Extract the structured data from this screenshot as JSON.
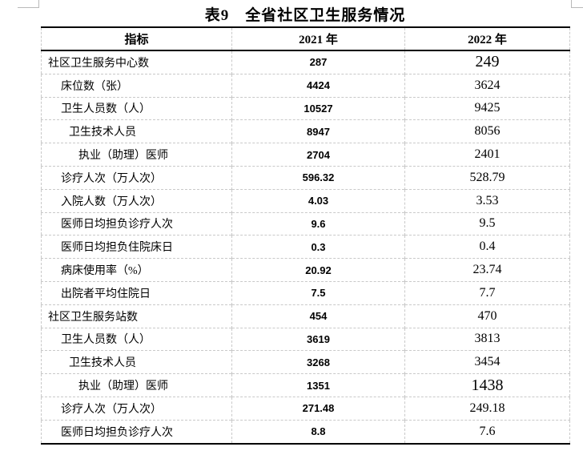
{
  "title": "表9　全省社区卫生服务情况",
  "colors": {
    "background": "#ffffff",
    "text": "#000000",
    "heavy_border": "#000000",
    "grid_dashed": "#c9c9c9",
    "corner_artifact": "#b9b9b9"
  },
  "table": {
    "headers": [
      "指标",
      "2021 年",
      "2022 年"
    ],
    "rows": [
      {
        "label": "社区卫生服务中心数",
        "indent": 0,
        "y2021": "287",
        "y2022": "249",
        "large_value_2022": true
      },
      {
        "label": "床位数（张）",
        "indent": 1,
        "y2021": "4424",
        "y2022": "3624",
        "large_value_2022": false
      },
      {
        "label": "卫生人员数（人）",
        "indent": 1,
        "y2021": "10527",
        "y2022": "9425",
        "large_value_2022": false
      },
      {
        "label": "卫生技术人员",
        "indent": 2,
        "y2021": "8947",
        "y2022": "8056",
        "large_value_2022": false
      },
      {
        "label": "执业（助理）医师",
        "indent": 3,
        "y2021": "2704",
        "y2022": "2401",
        "large_value_2022": false
      },
      {
        "label": "诊疗人次（万人次）",
        "indent": 1,
        "y2021": "596.32",
        "y2022": "528.79",
        "large_value_2022": false
      },
      {
        "label": "入院人数（万人次）",
        "indent": 1,
        "y2021": "4.03",
        "y2022": "3.53",
        "large_value_2022": false
      },
      {
        "label": "医师日均担负诊疗人次",
        "indent": 1,
        "y2021": "9.6",
        "y2022": "9.5",
        "large_value_2022": false
      },
      {
        "label": "医师日均担负住院床日",
        "indent": 1,
        "y2021": "0.3",
        "y2022": "0.4",
        "large_value_2022": false
      },
      {
        "label": "病床使用率（%）",
        "indent": 1,
        "y2021": "20.92",
        "y2022": "23.74",
        "large_value_2022": false
      },
      {
        "label": "出院者平均住院日",
        "indent": 1,
        "y2021": "7.5",
        "y2022": "7.7",
        "large_value_2022": false
      },
      {
        "label": "社区卫生服务站数",
        "indent": 0,
        "y2021": "454",
        "y2022": "470",
        "large_value_2022": false
      },
      {
        "label": "卫生人员数（人）",
        "indent": 1,
        "y2021": "3619",
        "y2022": "3813",
        "large_value_2022": false
      },
      {
        "label": "卫生技术人员",
        "indent": 2,
        "y2021": "3268",
        "y2022": "3454",
        "large_value_2022": false
      },
      {
        "label": "执业（助理）医师",
        "indent": 3,
        "y2021": "1351",
        "y2022": "1438",
        "large_value_2022": true
      },
      {
        "label": "诊疗人次（万人次）",
        "indent": 1,
        "y2021": "271.48",
        "y2022": "249.18",
        "large_value_2022": false
      },
      {
        "label": "医师日均担负诊疗人次",
        "indent": 1,
        "y2021": "8.8",
        "y2022": "7.6",
        "large_value_2022": false
      }
    ]
  }
}
